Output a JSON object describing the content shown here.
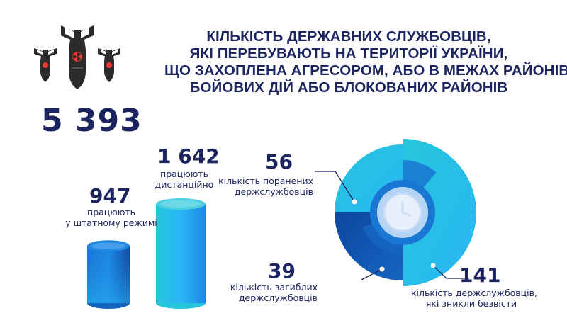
{
  "header": {
    "title_lines": [
      "КІЛЬКІСТЬ ДЕРЖАВНИХ СЛУЖБОВЦІВ,",
      "ЯКІ ПЕРЕБУВАЮТЬ НА ТЕРИТОРІЇ УКРАЇНИ,",
      "ЩО ЗАХОПЛЕНА АГРЕСОРОМ, АБО В МЕЖАХ РАЙОНІВ",
      "БОЙОВИХ ДІЙ АБО БЛОКОВАНИХ РАЙОНІВ"
    ],
    "total": "5 393",
    "icon": "bombs-radiation-icon"
  },
  "colors": {
    "navy": "#1d2560",
    "blue": "#1565c0",
    "cyan": "#29b6f6",
    "light_cyan": "#4dd0e1",
    "dark_blue": "#0d47a1"
  },
  "chart_data": [
    {
      "type": "bar",
      "categories": [
        "працюють у штатному режимі",
        "працюють дистанційно"
      ],
      "values": [
        947,
        1642
      ],
      "value_labels": [
        "947",
        "1 642"
      ],
      "label_lines": [
        [
          "працюють",
          "у штатному режимі"
        ],
        [
          "працюють",
          "дистанційно"
        ]
      ]
    },
    {
      "type": "pie",
      "categories": [
        "кількість поранених держслужбовців",
        "кількість загиблих держслужбовців",
        "кількість держслужбовців, які зникли безвісти"
      ],
      "values": [
        56,
        39,
        141
      ],
      "value_labels": [
        "56",
        "39",
        "141"
      ],
      "label_lines": [
        [
          "кількість поранених",
          "держслужбовців"
        ],
        [
          "кількість загиблих",
          "держслужбовців"
        ],
        [
          "кількість держслужбовців,",
          "які зникли безвісти"
        ]
      ]
    }
  ]
}
